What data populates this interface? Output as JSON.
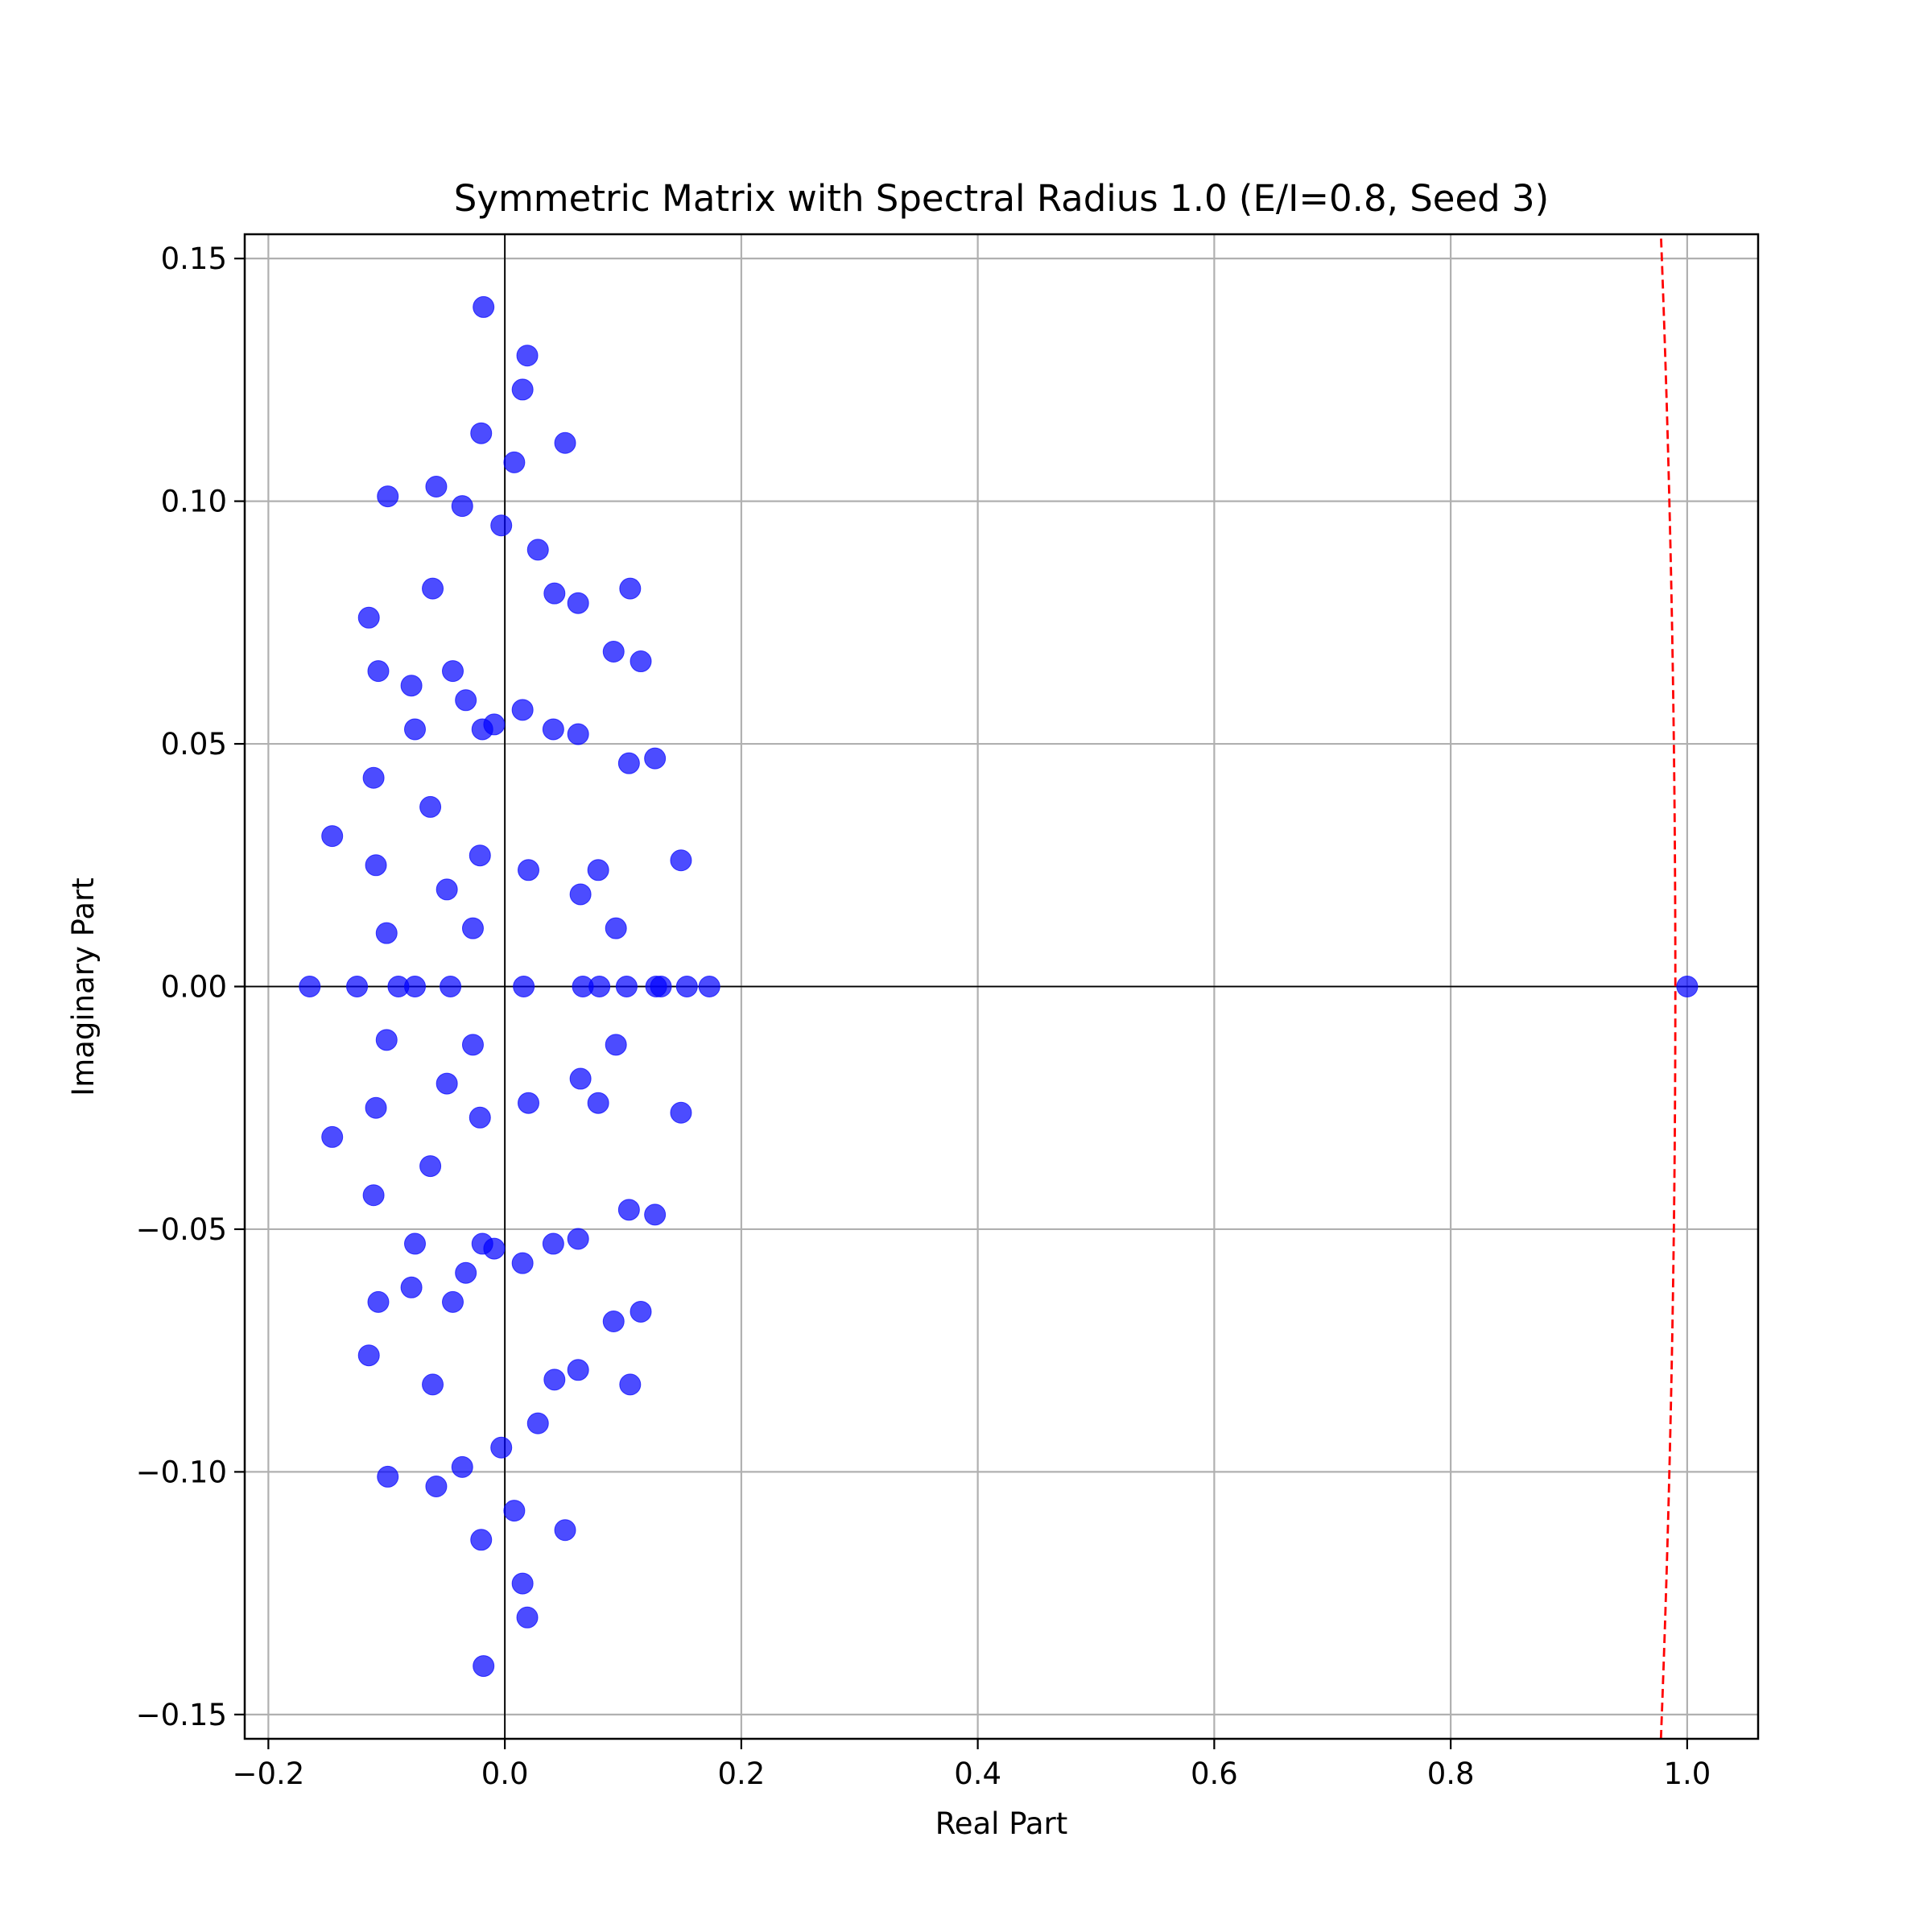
{
  "chart_data": {
    "type": "scatter",
    "title": "Symmetric Matrix with Spectral Radius 1.0 (E/I=0.8, Seed 3)",
    "xlabel": "Real Part",
    "ylabel": "Imaginary Part",
    "xlim": [
      -0.22,
      1.06
    ],
    "ylim": [
      -0.155,
      0.155
    ],
    "xticks": [
      -0.2,
      0.0,
      0.2,
      0.4,
      0.6,
      0.8,
      1.0
    ],
    "xtick_labels": [
      "−0.2",
      "0.0",
      "0.2",
      "0.4",
      "0.6",
      "0.8",
      "1.0"
    ],
    "yticks": [
      0.15,
      0.1,
      0.05,
      0.0,
      -0.05,
      -0.1,
      -0.15
    ],
    "ytick_labels": [
      "0.15",
      "0.10",
      "0.05",
      "0.00",
      "−0.05",
      "−0.10",
      "−0.15"
    ],
    "grid": true,
    "colors": {
      "points": "#0000ff",
      "circle": "#ff0000",
      "axes": "#000000",
      "grid": "#b0b0b0"
    },
    "reference_circle": {
      "center": [
        0,
        0
      ],
      "radius": 0.99,
      "style": "dashed"
    },
    "real_points": [
      -0.165,
      -0.125,
      -0.09,
      -0.076,
      -0.046,
      0.016,
      0.066,
      0.08,
      0.103,
      0.128,
      0.132,
      0.154,
      0.173,
      1.0
    ],
    "conjugate_pairs": [
      [
        -0.018,
        0.14
      ],
      [
        0.019,
        0.13
      ],
      [
        0.015,
        0.123
      ],
      [
        -0.02,
        0.114
      ],
      [
        0.051,
        0.112
      ],
      [
        0.008,
        0.108
      ],
      [
        -0.058,
        0.103
      ],
      [
        -0.099,
        0.101
      ],
      [
        -0.036,
        0.099
      ],
      [
        -0.003,
        0.095
      ],
      [
        0.028,
        0.09
      ],
      [
        -0.061,
        0.082
      ],
      [
        0.106,
        0.082
      ],
      [
        0.042,
        0.081
      ],
      [
        0.062,
        0.079
      ],
      [
        -0.115,
        0.076
      ],
      [
        0.092,
        0.069
      ],
      [
        0.115,
        0.067
      ],
      [
        -0.107,
        0.065
      ],
      [
        -0.044,
        0.065
      ],
      [
        -0.079,
        0.062
      ],
      [
        -0.033,
        0.059
      ],
      [
        0.015,
        0.057
      ],
      [
        -0.009,
        0.054
      ],
      [
        -0.076,
        0.053
      ],
      [
        -0.019,
        0.053
      ],
      [
        0.041,
        0.053
      ],
      [
        0.062,
        0.052
      ],
      [
        0.127,
        0.047
      ],
      [
        0.105,
        0.046
      ],
      [
        -0.111,
        0.043
      ],
      [
        -0.063,
        0.037
      ],
      [
        -0.146,
        0.031
      ],
      [
        -0.021,
        0.027
      ],
      [
        0.149,
        0.026
      ],
      [
        -0.109,
        0.025
      ],
      [
        0.02,
        0.024
      ],
      [
        0.079,
        0.024
      ],
      [
        -0.049,
        0.02
      ],
      [
        0.064,
        0.019
      ],
      [
        -0.027,
        0.012
      ],
      [
        0.094,
        0.012
      ],
      [
        -0.1,
        0.011
      ]
    ]
  }
}
